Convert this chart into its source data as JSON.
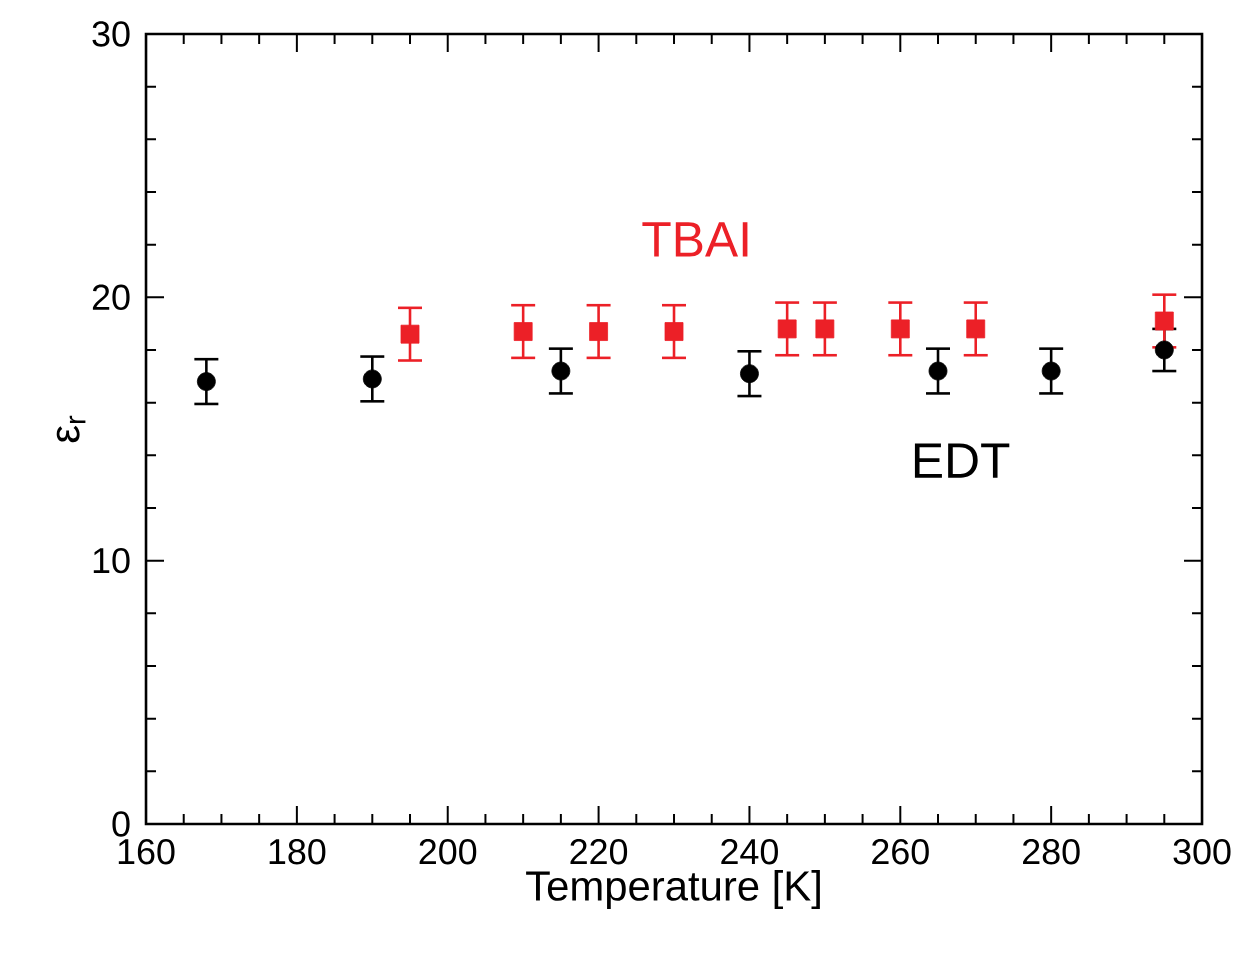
{
  "chart_data": {
    "type": "scatter",
    "xlabel": "Temperature [K]",
    "ylabel": "ε$_{r}$",
    "xlim": [
      160,
      300
    ],
    "ylim": [
      0,
      30
    ],
    "xticks": [
      160,
      180,
      200,
      220,
      240,
      260,
      280,
      300
    ],
    "yticks": [
      0,
      10,
      20,
      30
    ],
    "series": [
      {
        "name": "EDT",
        "color": "#000000",
        "marker": "circle",
        "x": [
          168,
          190,
          215,
          240,
          265,
          280,
          295
        ],
        "values": [
          16.8,
          16.9,
          17.2,
          17.1,
          17.2,
          17.2,
          18.0
        ],
        "errors": [
          0.85,
          0.85,
          0.85,
          0.85,
          0.85,
          0.85,
          0.8
        ]
      },
      {
        "name": "TBAI",
        "color": "#ec2027",
        "marker": "square",
        "x": [
          195,
          210,
          220,
          230,
          245,
          250,
          260,
          270,
          295
        ],
        "values": [
          18.6,
          18.7,
          18.7,
          18.7,
          18.8,
          18.8,
          18.8,
          18.8,
          19.1
        ],
        "errors": [
          1.0,
          1.0,
          1.0,
          1.0,
          1.0,
          1.0,
          1.0,
          1.0,
          1.0
        ]
      }
    ]
  }
}
